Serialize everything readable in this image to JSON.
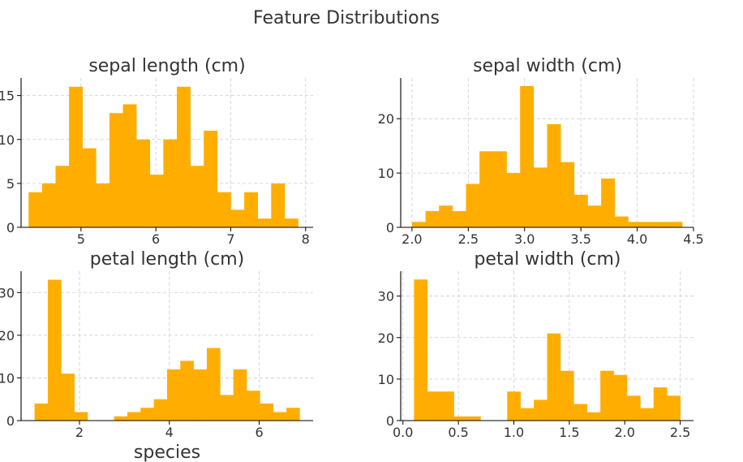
{
  "suptitle": "Feature Distributions",
  "colors": {
    "bar": "#FFAE00",
    "grid": "#CCCCCC",
    "text": "#333333"
  },
  "chart_data": [
    {
      "type": "bar",
      "title": "sepal length (cm)",
      "xlabel": "",
      "ylabel": "",
      "grid": true,
      "xlim": [
        4.2,
        8.1
      ],
      "ylim": [
        0,
        17
      ],
      "xticks": [
        5,
        6,
        7,
        8
      ],
      "yticks": [
        0,
        5,
        10,
        15
      ],
      "bin_edges": [
        4.3,
        4.48,
        4.66,
        4.84,
        5.02,
        5.2,
        5.38,
        5.56,
        5.74,
        5.92,
        6.1,
        6.28,
        6.46,
        6.64,
        6.82,
        7.0,
        7.18,
        7.36,
        7.54,
        7.72,
        7.9
      ],
      "values": [
        4,
        5,
        7,
        16,
        9,
        5,
        13,
        14,
        10,
        6,
        10,
        16,
        7,
        11,
        4,
        2,
        4,
        1,
        5,
        1
      ]
    },
    {
      "type": "bar",
      "title": "sepal width (cm)",
      "xlabel": "",
      "ylabel": "",
      "grid": true,
      "xlim": [
        1.9,
        4.5
      ],
      "ylim": [
        0,
        27.5
      ],
      "xticks": [
        2.0,
        2.5,
        3.0,
        3.5,
        4.0,
        4.5
      ],
      "xtick_labels": [
        "2.0",
        "2.5",
        "3.0",
        "3.5",
        "4.0",
        "4.5"
      ],
      "yticks": [
        0,
        10,
        20
      ],
      "bin_edges": [
        2.0,
        2.12,
        2.24,
        2.36,
        2.48,
        2.6,
        2.72,
        2.84,
        2.96,
        3.08,
        3.2,
        3.32,
        3.44,
        3.56,
        3.68,
        3.8,
        3.92,
        4.04,
        4.16,
        4.28,
        4.4
      ],
      "values": [
        1,
        3,
        4,
        3,
        8,
        14,
        14,
        10,
        26,
        11,
        19,
        12,
        6,
        4,
        9,
        2,
        1,
        1,
        1,
        1
      ]
    },
    {
      "type": "bar",
      "title": "petal length (cm)",
      "xlabel": "species",
      "ylabel": "",
      "grid": true,
      "xlim": [
        0.7,
        7.2
      ],
      "ylim": [
        0,
        35
      ],
      "xticks": [
        2,
        4,
        6
      ],
      "yticks": [
        0,
        10,
        20,
        30
      ],
      "bin_edges": [
        1.0,
        1.295,
        1.59,
        1.885,
        2.18,
        2.475,
        2.77,
        3.065,
        3.36,
        3.655,
        3.95,
        4.245,
        4.54,
        4.835,
        5.13,
        5.425,
        5.72,
        6.015,
        6.31,
        6.605,
        6.9
      ],
      "values": [
        4,
        33,
        11,
        2,
        0,
        0,
        1,
        2,
        3,
        5,
        12,
        14,
        12,
        17,
        6,
        12,
        7,
        4,
        2,
        3
      ]
    },
    {
      "type": "bar",
      "title": "petal width (cm)",
      "xlabel": "",
      "ylabel": "",
      "grid": true,
      "xlim": [
        -0.02,
        2.62
      ],
      "ylim": [
        0,
        36
      ],
      "xticks": [
        0.0,
        0.5,
        1.0,
        1.5,
        2.0,
        2.5
      ],
      "xtick_labels": [
        "0.0",
        "0.5",
        "1.0",
        "1.5",
        "2.0",
        "2.5"
      ],
      "yticks": [
        0,
        10,
        20,
        30
      ],
      "bin_edges": [
        0.1,
        0.22,
        0.34,
        0.46,
        0.58,
        0.7,
        0.82,
        0.94,
        1.06,
        1.18,
        1.3,
        1.42,
        1.54,
        1.66,
        1.78,
        1.9,
        2.02,
        2.14,
        2.26,
        2.38,
        2.5
      ],
      "values": [
        34,
        7,
        7,
        1,
        1,
        0,
        0,
        7,
        3,
        5,
        21,
        12,
        4,
        2,
        12,
        11,
        6,
        3,
        8,
        6
      ]
    }
  ]
}
